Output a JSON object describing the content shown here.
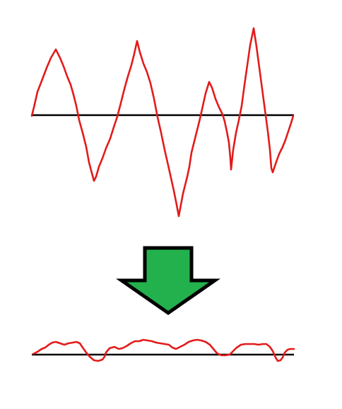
{
  "diagram": {
    "colors": {
      "wave": "#e31b1b",
      "baseline": "#000000",
      "arrow_fill": "#22b14c",
      "arrow_outline": "#000000",
      "background": "#ffffff"
    },
    "panels": [
      {
        "name": "input-signal",
        "description_visible": false
      },
      {
        "name": "output-signal",
        "description_visible": false
      }
    ],
    "arrow": {
      "direction": "down"
    }
  }
}
